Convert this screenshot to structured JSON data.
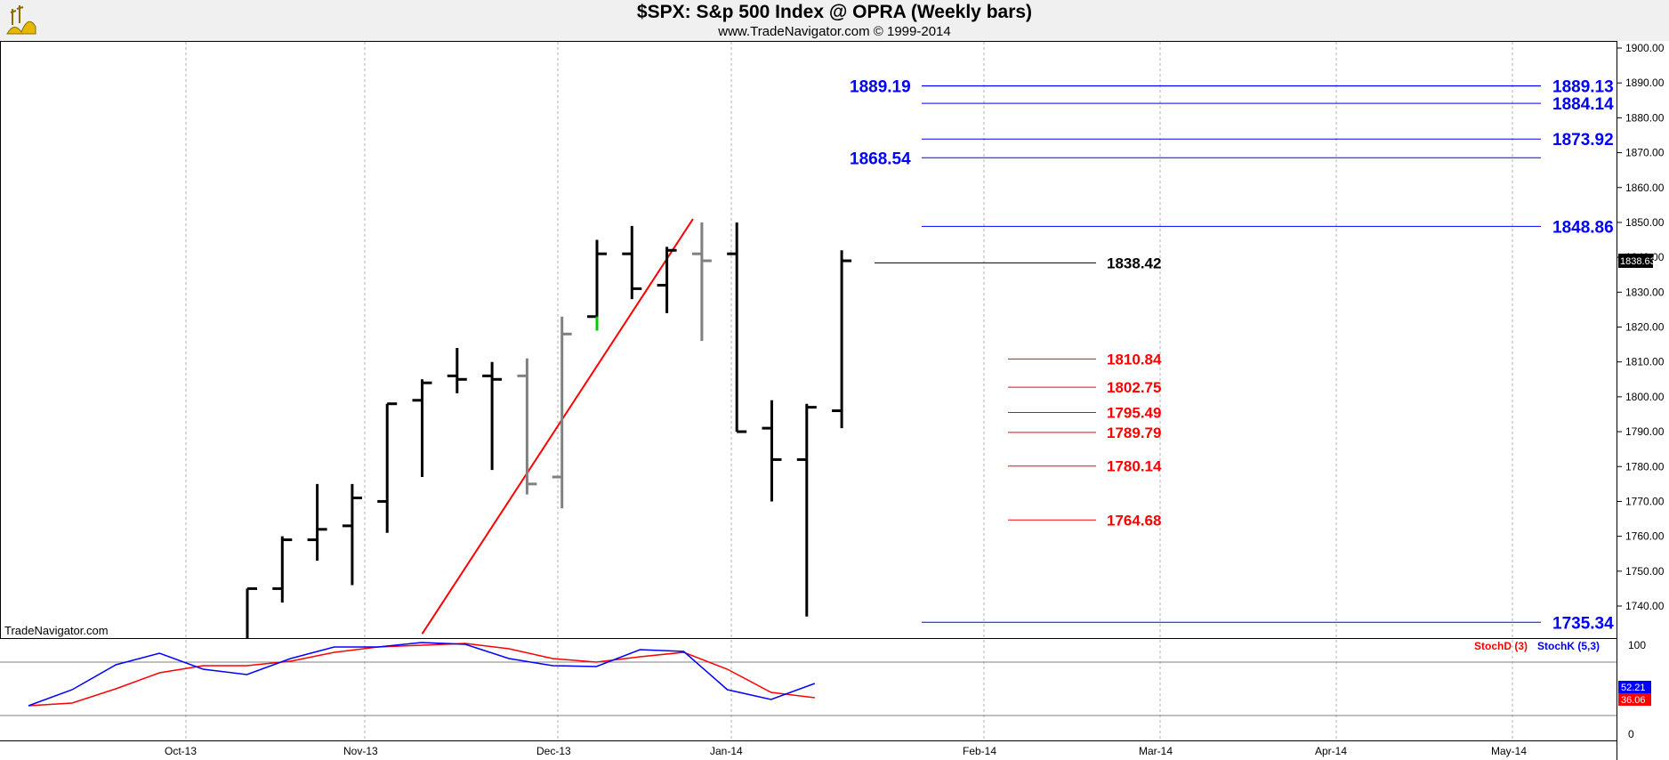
{
  "header": {
    "title": "$SPX:  S&p 500 Index @ OPRA  (Weekly bars)",
    "subtitle": "www.TradeNavigator.com © 1999-2014"
  },
  "watermark": "TradeNavigator.com",
  "colors": {
    "up_bar": "#000000",
    "gray_bar": "#808080",
    "green_accent": "#00cc00",
    "trendline": "#ff0000",
    "blue_level": "#0000ff",
    "red_level": "#ff0000",
    "stoch_d": "#ff0000",
    "stoch_k": "#0000ff"
  },
  "chart_data": [
    {
      "type": "ohlc",
      "title": "$SPX:  S&p 500 Index @ OPRA  (Weekly bars)",
      "y_ticks": [
        1740,
        1750,
        1760,
        1770,
        1780,
        1790,
        1800,
        1810,
        1820,
        1830,
        1840,
        1850,
        1860,
        1870,
        1880,
        1890,
        1900
      ],
      "y_tick_labels": [
        "1740.00",
        "1750.00",
        "1760.00",
        "1770.00",
        "1780.00",
        "1790.00",
        "1800.00",
        "1810.00",
        "1820.00",
        "1830.00",
        "1840.00",
        "1850.00",
        "1860.00",
        "1870.00",
        "1880.00",
        "1890.00",
        "1900.00"
      ],
      "ylim": [
        1731,
        1903
      ],
      "x_labels": [
        "Oct-13",
        "Nov-13",
        "Dec-13",
        "Jan-14",
        "Feb-14",
        "Mar-14",
        "Apr-14",
        "May-14"
      ],
      "last_price_label": "1838.63",
      "bars": [
        {
          "x": 0,
          "open": 1700.0,
          "high": 1745.0,
          "low": 1700.0,
          "close": 1745.0,
          "color": "black"
        },
        {
          "x": 1,
          "open": 1745.0,
          "high": 1760.0,
          "low": 1741.0,
          "close": 1759.0,
          "color": "black"
        },
        {
          "x": 2,
          "open": 1759.0,
          "high": 1775.0,
          "low": 1753.0,
          "close": 1762.0,
          "color": "black"
        },
        {
          "x": 3,
          "open": 1763.0,
          "high": 1775.0,
          "low": 1746.0,
          "close": 1771.0,
          "color": "black"
        },
        {
          "x": 4,
          "open": 1770.0,
          "high": 1798.0,
          "low": 1761.0,
          "close": 1798.0,
          "color": "black"
        },
        {
          "x": 5,
          "open": 1799.0,
          "high": 1805.0,
          "low": 1777.0,
          "close": 1804.0,
          "color": "black"
        },
        {
          "x": 6,
          "open": 1806.0,
          "high": 1814.0,
          "low": 1801.0,
          "close": 1805.0,
          "color": "black"
        },
        {
          "x": 7,
          "open": 1806.0,
          "high": 1810.0,
          "low": 1779.0,
          "close": 1805.0,
          "color": "black"
        },
        {
          "x": 8,
          "open": 1806.0,
          "high": 1811.0,
          "low": 1772.0,
          "close": 1775.0,
          "color": "gray"
        },
        {
          "x": 9,
          "open": 1777.0,
          "high": 1823.0,
          "low": 1768.0,
          "close": 1818.0,
          "color": "gray"
        },
        {
          "x": 10,
          "open": 1823.0,
          "high": 1845.0,
          "low": 1819.0,
          "close": 1841.0,
          "color": "black",
          "green_low": true
        },
        {
          "x": 11,
          "open": 1841.0,
          "high": 1849.0,
          "low": 1828.0,
          "close": 1831.0,
          "color": "black"
        },
        {
          "x": 12,
          "open": 1832.0,
          "high": 1843.0,
          "low": 1824.0,
          "close": 1842.0,
          "color": "black"
        },
        {
          "x": 13,
          "open": 1841.0,
          "high": 1850.0,
          "low": 1816.0,
          "close": 1839.0,
          "color": "gray"
        },
        {
          "x": 14,
          "open": 1841.0,
          "high": 1850.0,
          "low": 1790.0,
          "close": 1790.0,
          "color": "black"
        },
        {
          "x": 15,
          "open": 1791.0,
          "high": 1799.0,
          "low": 1770.0,
          "close": 1782.0,
          "color": "black"
        },
        {
          "x": 16,
          "open": 1782.0,
          "high": 1798.0,
          "low": 1737.0,
          "close": 1797.0,
          "color": "black"
        },
        {
          "x": 17,
          "open": 1796.0,
          "high": 1842.0,
          "low": 1791.0,
          "close": 1839.0,
          "color": "black"
        }
      ],
      "blue_levels_right": [
        "1889.13",
        "1884.14",
        "1873.92",
        "1848.86",
        "1735.34"
      ],
      "blue_levels_left": [
        "1889.19",
        "1868.54"
      ],
      "red_levels": [
        "1810.84",
        "1802.75",
        "1795.49",
        "1789.79",
        "1780.14",
        "1764.68"
      ],
      "black_level": "1838.42",
      "trendline": {
        "from": {
          "x": 5.0,
          "y": 1732.0
        },
        "to": {
          "x": 13.0,
          "y": 1851.0
        }
      }
    },
    {
      "type": "line",
      "legend": [
        "StochD (3)",
        "StochK (5,3)"
      ],
      "y_ticks": [
        "100",
        "0"
      ],
      "ylim": [
        0,
        100
      ],
      "series": [
        {
          "name": "StochD (3)",
          "color": "#ff0000",
          "values": [
            27,
            30,
            46,
            64,
            72,
            72,
            77,
            87,
            93,
            95,
            97,
            91,
            80,
            76,
            82,
            87,
            68,
            42,
            36
          ]
        },
        {
          "name": "StochK (5,3)",
          "color": "#0000ff",
          "values": [
            27,
            45,
            73,
            86,
            68,
            62,
            80,
            93,
            93,
            98,
            96,
            80,
            72,
            71,
            90,
            88,
            45,
            34,
            52
          ]
        }
      ],
      "last_labels": [
        "52.21",
        "36.06"
      ]
    }
  ]
}
